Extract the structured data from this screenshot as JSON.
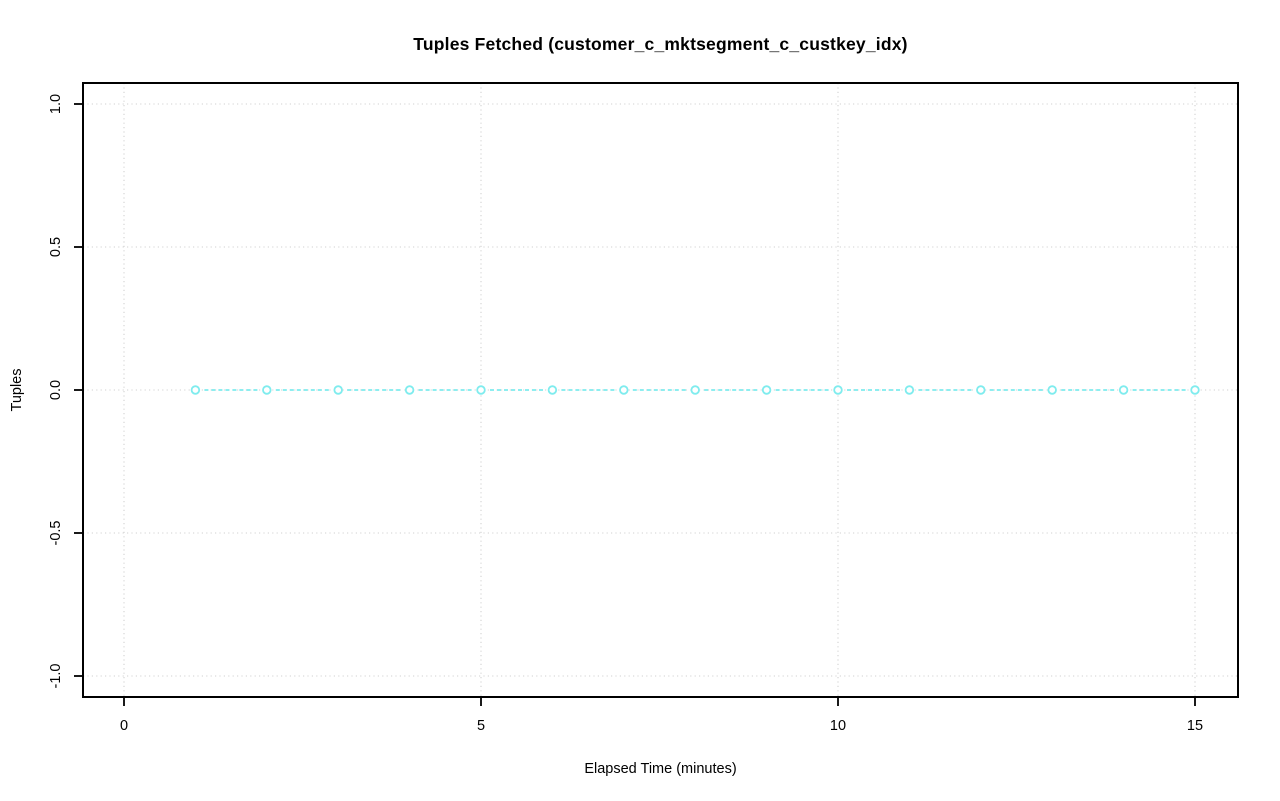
{
  "chart_data": {
    "type": "line",
    "title": "Tuples Fetched (customer_c_mktsegment_c_custkey_idx)",
    "xlabel": "Elapsed Time (minutes)",
    "ylabel": "Tuples",
    "x": [
      1,
      2,
      3,
      4,
      5,
      6,
      7,
      8,
      9,
      10,
      11,
      12,
      13,
      14,
      15
    ],
    "y": [
      0,
      0,
      0,
      0,
      0,
      0,
      0,
      0,
      0,
      0,
      0,
      0,
      0,
      0,
      0
    ],
    "xlim": [
      0,
      15
    ],
    "ylim": [
      -1.0,
      1.0
    ],
    "xticks": [
      0,
      5,
      10,
      15
    ],
    "xtick_labels": [
      "0",
      "5",
      "10",
      "15"
    ],
    "yticks": [
      -1.0,
      -0.5,
      0.0,
      0.5,
      1.0
    ],
    "ytick_labels": [
      "-1.0",
      "-0.5",
      "0.0",
      "0.5",
      "1.0"
    ],
    "grid": true,
    "grid_style": "dotted",
    "line_style": "dashed",
    "marker": "open-circle",
    "legend": "none",
    "colors": {
      "series": "#7fecee",
      "grid": "#d2d2d2",
      "axis": "#000000",
      "background": "#ffffff",
      "text": "#000000"
    }
  }
}
